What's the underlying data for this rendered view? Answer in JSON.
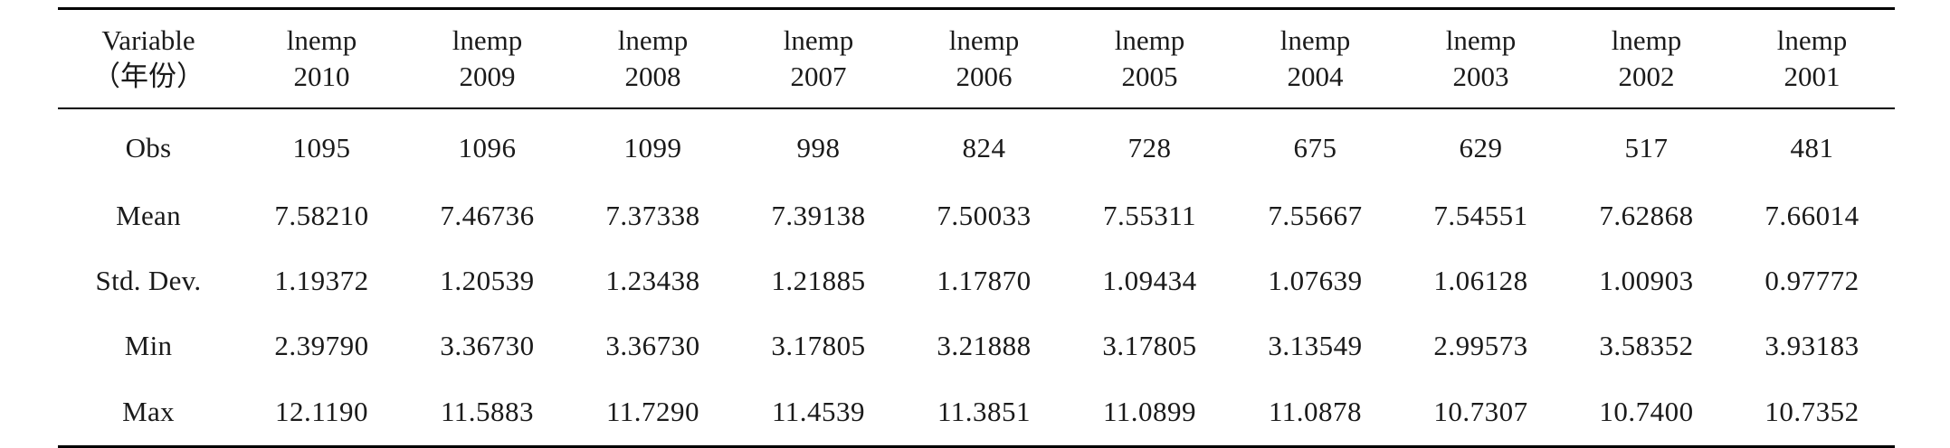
{
  "table": {
    "header": {
      "label_line1": "Variable",
      "label_line2": "（年份）",
      "columns": [
        {
          "var": "lnemp",
          "year": "2010"
        },
        {
          "var": "lnemp",
          "year": "2009"
        },
        {
          "var": "lnemp",
          "year": "2008"
        },
        {
          "var": "lnemp",
          "year": "2007"
        },
        {
          "var": "lnemp",
          "year": "2006"
        },
        {
          "var": "lnemp",
          "year": "2005"
        },
        {
          "var": "lnemp",
          "year": "2004"
        },
        {
          "var": "lnemp",
          "year": "2003"
        },
        {
          "var": "lnemp",
          "year": "2002"
        },
        {
          "var": "lnemp",
          "year": "2001"
        }
      ]
    },
    "rows": [
      {
        "label": "Obs",
        "values": [
          "1095",
          "1096",
          "1099",
          "998",
          "824",
          "728",
          "675",
          "629",
          "517",
          "481"
        ]
      },
      {
        "label": "Mean",
        "values": [
          "7.58210",
          "7.46736",
          "7.37338",
          "7.39138",
          "7.50033",
          "7.55311",
          "7.55667",
          "7.54551",
          "7.62868",
          "7.66014"
        ]
      },
      {
        "label": "Std. Dev.",
        "values": [
          "1.19372",
          "1.20539",
          "1.23438",
          "1.21885",
          "1.17870",
          "1.09434",
          "1.07639",
          "1.06128",
          "1.00903",
          "0.97772"
        ]
      },
      {
        "label": "Min",
        "values": [
          "2.39790",
          "3.36730",
          "3.36730",
          "3.17805",
          "3.21888",
          "3.17805",
          "3.13549",
          "2.99573",
          "3.58352",
          "3.93183"
        ]
      },
      {
        "label": "Max",
        "values": [
          "12.1190",
          "11.5883",
          "11.7290",
          "11.4539",
          "11.3851",
          "11.0899",
          "11.0878",
          "10.7307",
          "10.7400",
          "10.7352"
        ]
      }
    ]
  }
}
